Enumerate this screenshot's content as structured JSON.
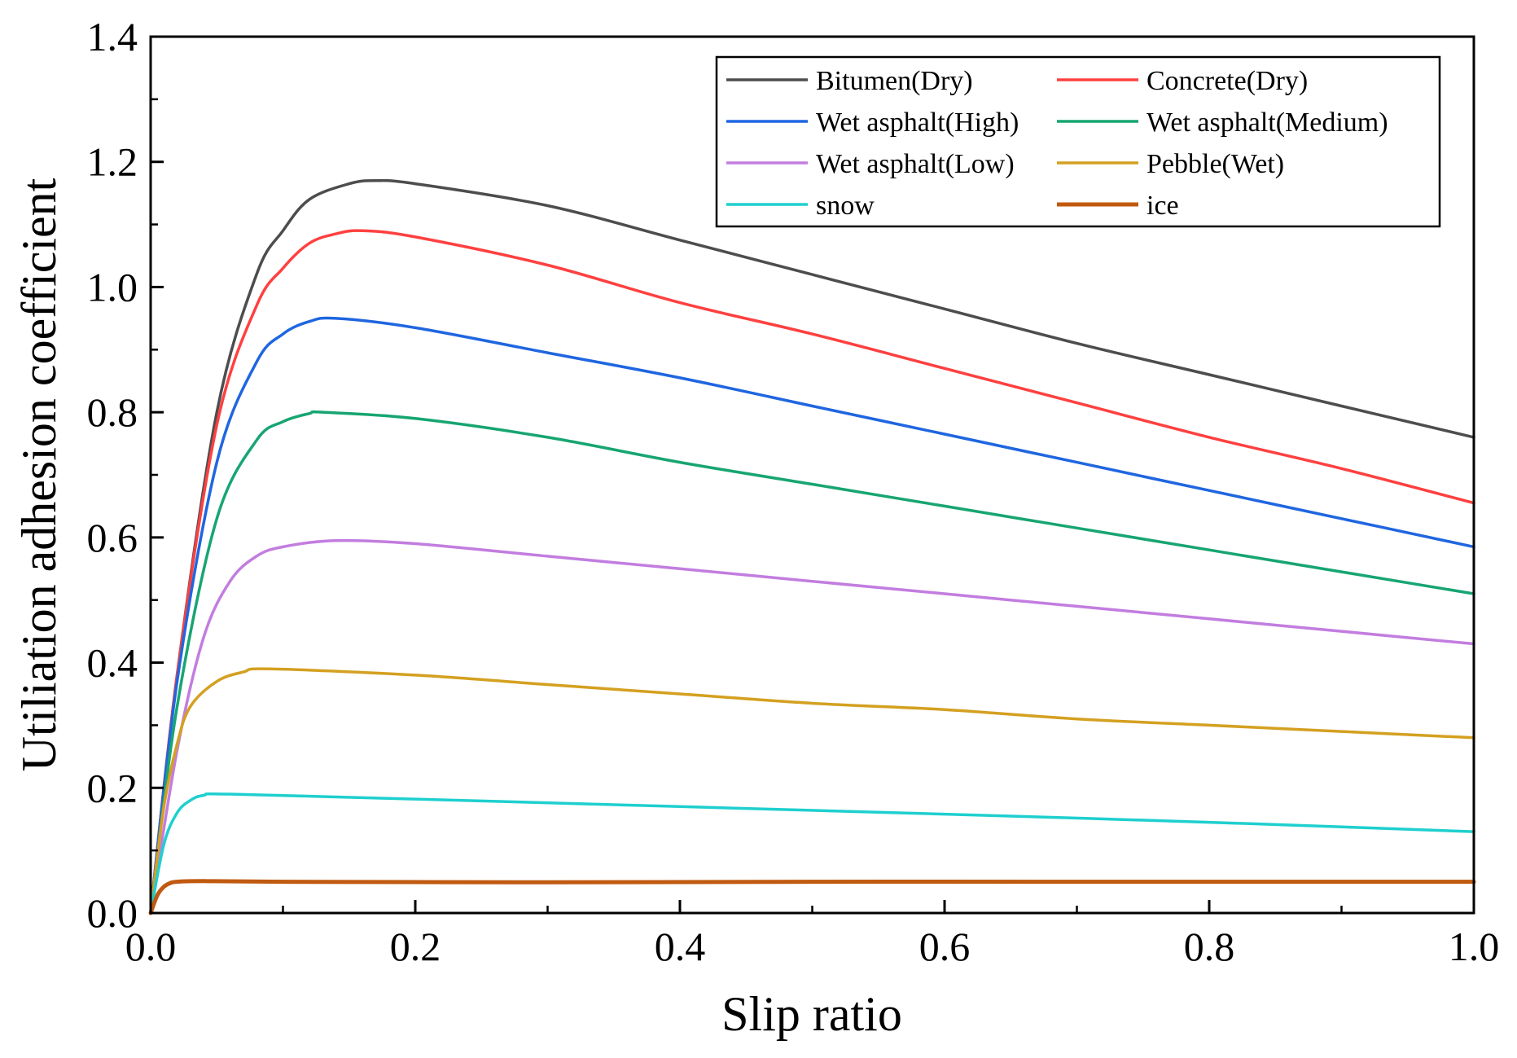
{
  "chart_data": {
    "type": "line",
    "title": "",
    "xlabel": "Slip ratio",
    "ylabel": "Utiliation adhesion coefficient",
    "xlim": [
      0,
      1.0
    ],
    "ylim": [
      0,
      1.4
    ],
    "xticks": [
      "0.0",
      "0.2",
      "0.4",
      "0.6",
      "0.8",
      "1.0"
    ],
    "yticks": [
      "0.0",
      "0.2",
      "0.4",
      "0.6",
      "0.8",
      "1.0",
      "1.2",
      "1.4"
    ],
    "grid": false,
    "legend_position": "top-right",
    "series": [
      {
        "name": "Bitumen(Dry)",
        "color": "#4d4d4d",
        "x": [
          0,
          0.02,
          0.05,
          0.08,
          0.1,
          0.12,
          0.15,
          0.17,
          0.2,
          0.3,
          0.4,
          0.5,
          0.6,
          0.7,
          0.8,
          0.9,
          1.0
        ],
        "y": [
          0,
          0.38,
          0.8,
          1.02,
          1.09,
          1.14,
          1.165,
          1.17,
          1.165,
          1.13,
          1.075,
          1.02,
          0.965,
          0.91,
          0.86,
          0.81,
          0.76
        ]
      },
      {
        "name": "Concrete(Dry)",
        "color": "#ff4040",
        "x": [
          0,
          0.02,
          0.05,
          0.08,
          0.1,
          0.12,
          0.14,
          0.16,
          0.2,
          0.3,
          0.4,
          0.5,
          0.6,
          0.7,
          0.8,
          0.9,
          1.0
        ],
        "y": [
          0,
          0.38,
          0.78,
          0.97,
          1.03,
          1.07,
          1.085,
          1.09,
          1.08,
          1.035,
          0.975,
          0.925,
          0.87,
          0.815,
          0.76,
          0.71,
          0.655
        ]
      },
      {
        "name": "Wet asphalt(High)",
        "color": "#1f66e0",
        "x": [
          0,
          0.02,
          0.05,
          0.08,
          0.1,
          0.12,
          0.14,
          0.2,
          0.3,
          0.4,
          0.5,
          0.6,
          0.7,
          0.8,
          0.9,
          1.0
        ],
        "y": [
          0,
          0.37,
          0.72,
          0.88,
          0.925,
          0.945,
          0.95,
          0.935,
          0.895,
          0.855,
          0.81,
          0.765,
          0.72,
          0.675,
          0.63,
          0.585
        ]
      },
      {
        "name": "Wet asphalt(Medium)",
        "color": "#17a572",
        "x": [
          0,
          0.02,
          0.05,
          0.08,
          0.1,
          0.12,
          0.13,
          0.2,
          0.3,
          0.4,
          0.5,
          0.6,
          0.7,
          0.8,
          0.9,
          1.0
        ],
        "y": [
          0,
          0.33,
          0.63,
          0.755,
          0.785,
          0.798,
          0.8,
          0.79,
          0.76,
          0.72,
          0.685,
          0.65,
          0.615,
          0.58,
          0.545,
          0.51
        ]
      },
      {
        "name": "Wet asphalt(Low)",
        "color": "#c27ddf",
        "x": [
          0,
          0.02,
          0.04,
          0.06,
          0.08,
          0.1,
          0.14,
          0.2,
          0.3,
          0.4,
          0.5,
          0.6,
          0.7,
          0.8,
          0.9,
          1.0
        ],
        "y": [
          0,
          0.26,
          0.44,
          0.53,
          0.57,
          0.585,
          0.595,
          0.59,
          0.57,
          0.55,
          0.53,
          0.51,
          0.49,
          0.47,
          0.45,
          0.43
        ]
      },
      {
        "name": "Pebble(Wet)",
        "color": "#d4a020",
        "x": [
          0,
          0.01,
          0.02,
          0.03,
          0.05,
          0.07,
          0.09,
          0.2,
          0.3,
          0.4,
          0.5,
          0.6,
          0.7,
          0.8,
          0.9,
          1.0
        ],
        "y": [
          0,
          0.17,
          0.27,
          0.33,
          0.37,
          0.385,
          0.39,
          0.38,
          0.365,
          0.35,
          0.335,
          0.325,
          0.31,
          0.3,
          0.29,
          0.28
        ]
      },
      {
        "name": "snow",
        "color": "#1fcfcf",
        "x": [
          0,
          0.01,
          0.02,
          0.03,
          0.04,
          0.06,
          0.2,
          0.4,
          0.6,
          0.8,
          1.0
        ],
        "y": [
          0,
          0.11,
          0.16,
          0.18,
          0.188,
          0.19,
          0.182,
          0.17,
          0.158,
          0.145,
          0.13
        ]
      },
      {
        "name": "ice",
        "color": "#c05a10",
        "x": [
          0,
          0.005,
          0.01,
          0.015,
          0.02,
          0.04,
          0.1,
          0.3,
          0.5,
          0.7,
          1.0
        ],
        "y": [
          0,
          0.028,
          0.042,
          0.048,
          0.05,
          0.051,
          0.05,
          0.049,
          0.05,
          0.05,
          0.05
        ]
      }
    ]
  }
}
